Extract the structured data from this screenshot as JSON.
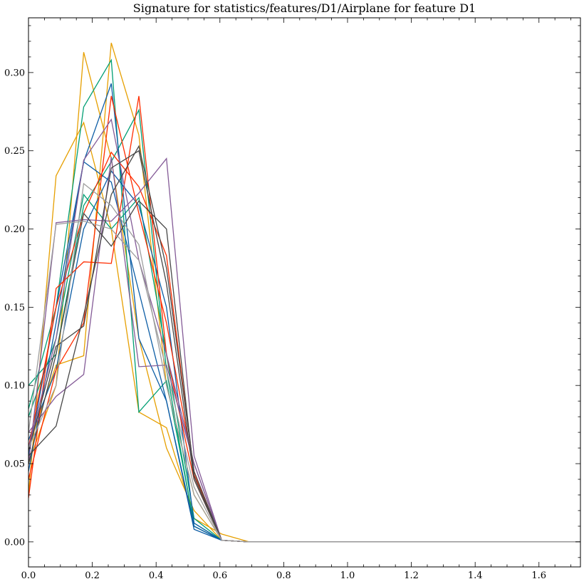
{
  "chart_data": {
    "type": "line",
    "title": "Signature for statistics/features/D1/Airplane for feature D1",
    "xlabel": "",
    "ylabel": "",
    "xlim": [
      0,
      1.73
    ],
    "ylim": [
      -0.016,
      0.335
    ],
    "xticks": [
      {
        "value": 0.0,
        "label": "0.0"
      },
      {
        "value": 0.2,
        "label": "0.2"
      },
      {
        "value": 0.4,
        "label": "0.4"
      },
      {
        "value": 0.6,
        "label": "0.6"
      },
      {
        "value": 0.8,
        "label": "0.8"
      },
      {
        "value": 1.0,
        "label": "1.0"
      },
      {
        "value": 1.2,
        "label": "1.2"
      },
      {
        "value": 1.4,
        "label": "1.4"
      },
      {
        "value": 1.6,
        "label": "1.6"
      }
    ],
    "yticks": [
      {
        "value": 0.0,
        "label": "0.00"
      },
      {
        "value": 0.05,
        "label": "0.05"
      },
      {
        "value": 0.1,
        "label": "0.10"
      },
      {
        "value": 0.15,
        "label": "0.15"
      },
      {
        "value": 0.2,
        "label": "0.20"
      },
      {
        "value": 0.25,
        "label": "0.25"
      },
      {
        "value": 0.3,
        "label": "0.30"
      }
    ],
    "grid": false,
    "legend": "none",
    "x": [
      0.0,
      0.0865,
      0.173,
      0.2595,
      0.346,
      0.4325,
      0.519,
      0.6055,
      0.692,
      0.7785,
      0.865,
      1.73
    ],
    "series": [
      {
        "color": "#E69F00",
        "values": [
          0.03,
          0.234,
          0.268,
          0.2,
          0.083,
          0.073,
          0.015,
          0.005,
          0.0,
          0.0,
          0.0,
          0.0
        ]
      },
      {
        "color": "#E69F00",
        "values": [
          0.05,
          0.1,
          0.313,
          0.245,
          0.13,
          0.06,
          0.02,
          0.001,
          0.0,
          0.0,
          0.0,
          0.0
        ]
      },
      {
        "color": "#E69F00",
        "values": [
          0.06,
          0.113,
          0.119,
          0.319,
          0.26,
          0.1,
          0.03,
          0.001,
          0.0,
          0.0,
          0.0,
          0.0
        ]
      },
      {
        "color": "#009E73",
        "values": [
          0.085,
          0.15,
          0.278,
          0.308,
          0.083,
          0.103,
          0.012,
          0.001,
          0.0,
          0.0,
          0.0,
          0.0
        ]
      },
      {
        "color": "#009E73",
        "values": [
          0.1,
          0.12,
          0.215,
          0.243,
          0.276,
          0.11,
          0.01,
          0.001,
          0.0,
          0.0,
          0.0,
          0.0
        ]
      },
      {
        "color": "#009E73",
        "values": [
          0.08,
          0.13,
          0.222,
          0.2,
          0.22,
          0.12,
          0.015,
          0.001,
          0.0,
          0.0,
          0.0,
          0.0
        ]
      },
      {
        "color": "#0C5DA5",
        "values": [
          0.045,
          0.14,
          0.243,
          0.293,
          0.13,
          0.09,
          0.008,
          0.001,
          0.0,
          0.0,
          0.0,
          0.0
        ]
      },
      {
        "color": "#0C5DA5",
        "values": [
          0.065,
          0.11,
          0.2,
          0.237,
          0.215,
          0.15,
          0.012,
          0.001,
          0.0,
          0.0,
          0.0,
          0.0
        ]
      },
      {
        "color": "#0C5DA5",
        "values": [
          0.055,
          0.15,
          0.243,
          0.23,
          0.16,
          0.09,
          0.01,
          0.001,
          0.0,
          0.0,
          0.0,
          0.0
        ]
      },
      {
        "color": "#FF2C00",
        "values": [
          0.028,
          0.162,
          0.179,
          0.178,
          0.285,
          0.12,
          0.04,
          0.001,
          0.0,
          0.0,
          0.0,
          0.0
        ]
      },
      {
        "color": "#FF2C00",
        "values": [
          0.04,
          0.11,
          0.14,
          0.285,
          0.21,
          0.14,
          0.045,
          0.001,
          0.0,
          0.0,
          0.0,
          0.0
        ]
      },
      {
        "color": "#FF2C00",
        "values": [
          0.06,
          0.15,
          0.21,
          0.249,
          0.227,
          0.183,
          0.043,
          0.001,
          0.0,
          0.0,
          0.0,
          0.0
        ]
      },
      {
        "color": "#845B97",
        "values": [
          0.07,
          0.093,
          0.107,
          0.246,
          0.112,
          0.113,
          0.05,
          0.001,
          0.0,
          0.0,
          0.0,
          0.0
        ]
      },
      {
        "color": "#845B97",
        "values": [
          0.05,
          0.204,
          0.206,
          0.205,
          0.223,
          0.245,
          0.055,
          0.001,
          0.0,
          0.0,
          0.0,
          0.0
        ]
      },
      {
        "color": "#845B97",
        "values": [
          0.06,
          0.13,
          0.244,
          0.27,
          0.18,
          0.12,
          0.05,
          0.001,
          0.0,
          0.0,
          0.0,
          0.0
        ]
      },
      {
        "color": "#474747",
        "values": [
          0.055,
          0.074,
          0.145,
          0.222,
          0.253,
          0.175,
          0.045,
          0.001,
          0.0,
          0.0,
          0.0,
          0.0
        ]
      },
      {
        "color": "#474747",
        "values": [
          0.05,
          0.12,
          0.21,
          0.189,
          0.218,
          0.2,
          0.042,
          0.001,
          0.0,
          0.0,
          0.0,
          0.0
        ]
      },
      {
        "color": "#474747",
        "values": [
          0.058,
          0.125,
          0.138,
          0.239,
          0.25,
          0.165,
          0.04,
          0.001,
          0.0,
          0.0,
          0.0,
          0.0
        ]
      },
      {
        "color": "#9E9E9E",
        "values": [
          0.06,
          0.1,
          0.229,
          0.215,
          0.19,
          0.1,
          0.03,
          0.001,
          0.0,
          0.0,
          0.0,
          0.0
        ]
      },
      {
        "color": "#9E9E9E",
        "values": [
          0.07,
          0.203,
          0.205,
          0.2,
          0.18,
          0.11,
          0.035,
          0.001,
          0.0,
          0.0,
          0.0,
          0.0
        ]
      }
    ]
  }
}
